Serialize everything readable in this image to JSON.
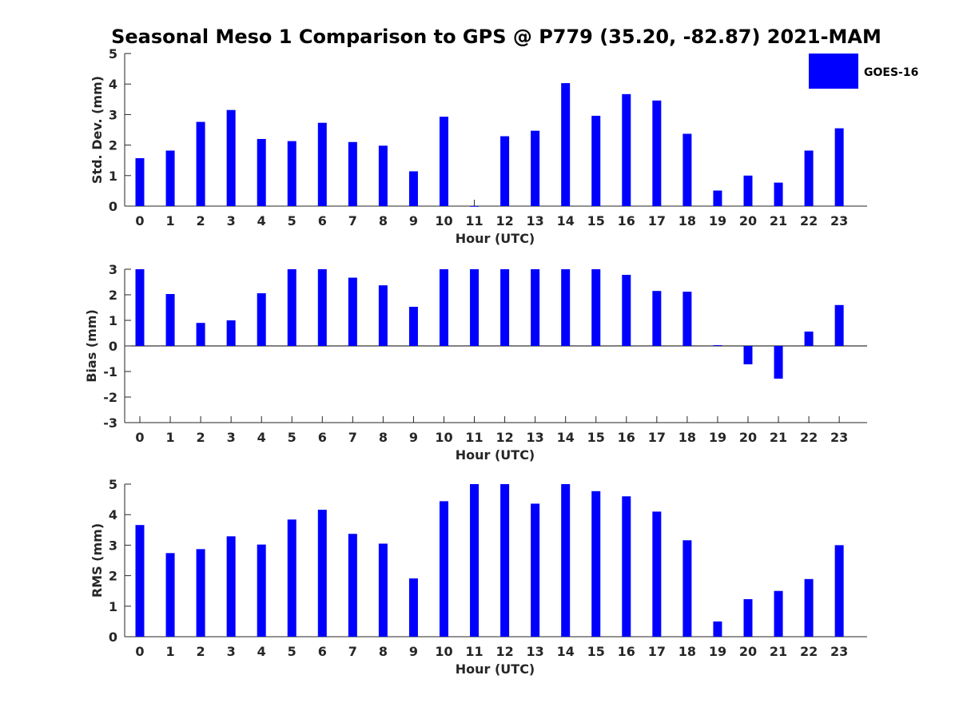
{
  "figure": {
    "title": "Seasonal Meso 1 Comparison to GPS @ P779 (35.20, -82.87) 2021-MAM",
    "legend": {
      "label": "GOES-16",
      "placement": "top-right",
      "color": "#0000ff"
    },
    "bar_color": "#0000ff",
    "axis_color": "#262626"
  },
  "chart_data": [
    {
      "type": "bar",
      "title": "",
      "xlabel": "Hour (UTC)",
      "ylabel": "Std. Dev. (mm)",
      "ylim": [
        0,
        5
      ],
      "yticks": [
        "0",
        "1",
        "2",
        "3",
        "4",
        "5"
      ],
      "categories": [
        "0",
        "1",
        "2",
        "3",
        "4",
        "5",
        "6",
        "7",
        "8",
        "9",
        "10",
        "11",
        "12",
        "13",
        "14",
        "15",
        "16",
        "17",
        "18",
        "19",
        "20",
        "21",
        "22",
        "23"
      ],
      "series": [
        {
          "name": "GOES-16",
          "values": [
            1.57,
            1.82,
            2.76,
            3.15,
            2.2,
            2.13,
            2.73,
            2.1,
            1.98,
            1.14,
            2.93,
            0.0,
            2.29,
            2.47,
            4.03,
            2.96,
            3.67,
            3.46,
            2.37,
            0.51,
            1.0,
            0.77,
            1.82,
            2.55
          ]
        }
      ],
      "grid": false
    },
    {
      "type": "bar",
      "title": "",
      "xlabel": "Hour (UTC)",
      "ylabel": "Bias (mm)",
      "ylim": [
        -3,
        3
      ],
      "yticks": [
        "-3",
        "-2",
        "-1",
        "0",
        "1",
        "2",
        "3"
      ],
      "categories": [
        "0",
        "1",
        "2",
        "3",
        "4",
        "5",
        "6",
        "7",
        "8",
        "9",
        "10",
        "11",
        "12",
        "13",
        "14",
        "15",
        "16",
        "17",
        "18",
        "19",
        "20",
        "21",
        "22",
        "23"
      ],
      "series": [
        {
          "name": "GOES-16",
          "values": [
            3.0,
            2.03,
            0.9,
            1.0,
            2.06,
            3.0,
            3.0,
            2.67,
            2.37,
            1.53,
            3.0,
            3.0,
            3.0,
            3.0,
            3.0,
            3.0,
            2.78,
            2.15,
            2.12,
            0.03,
            -0.72,
            -1.28,
            0.56,
            1.6
          ]
        }
      ],
      "grid": false
    },
    {
      "type": "bar",
      "title": "",
      "xlabel": "Hour (UTC)",
      "ylabel": "RMS (mm)",
      "ylim": [
        0,
        5
      ],
      "yticks": [
        "0",
        "1",
        "2",
        "3",
        "4",
        "5"
      ],
      "categories": [
        "0",
        "1",
        "2",
        "3",
        "4",
        "5",
        "6",
        "7",
        "8",
        "9",
        "10",
        "11",
        "12",
        "13",
        "14",
        "15",
        "16",
        "17",
        "18",
        "19",
        "20",
        "21",
        "22",
        "23"
      ],
      "series": [
        {
          "name": "GOES-16",
          "values": [
            3.66,
            2.74,
            2.87,
            3.29,
            3.02,
            3.84,
            4.16,
            3.37,
            3.05,
            1.91,
            4.44,
            5.0,
            5.0,
            4.36,
            5.0,
            4.77,
            4.6,
            4.1,
            3.16,
            0.5,
            1.23,
            1.5,
            1.89,
            3.0
          ]
        }
      ],
      "grid": false
    }
  ]
}
